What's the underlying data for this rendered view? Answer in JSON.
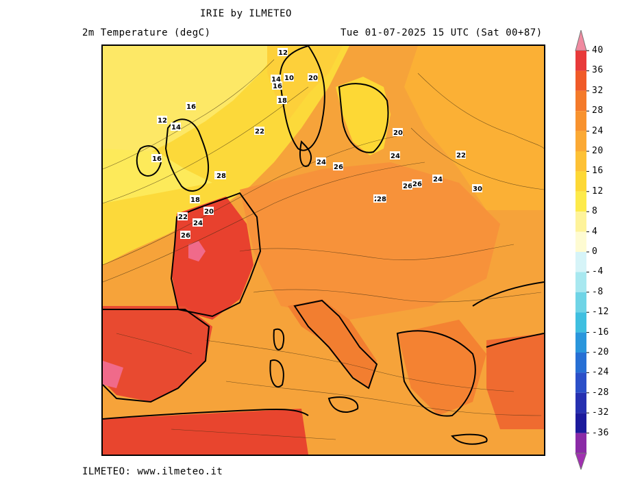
{
  "header": {
    "title": "IRIE by ILMETEO",
    "variable": "2m Temperature (degC)",
    "valid_time": "Tue 01-07-2025 15 UTC (Sat 00+87)"
  },
  "footer": {
    "credit": "ILMETEO: www.ilmeteo.it"
  },
  "colorbar": {
    "levels": [
      "40",
      "36",
      "32",
      "28",
      "24",
      "20",
      "16",
      "12",
      "8",
      "4",
      "0",
      "-4",
      "-8",
      "-12",
      "-16",
      "-20",
      "-24",
      "-28",
      "-32",
      "-36"
    ],
    "colors": [
      "#e83a3a",
      "#f05a28",
      "#f47a2a",
      "#f8922e",
      "#fba934",
      "#fdc135",
      "#fdd835",
      "#fdea4a",
      "#fef39a",
      "#fefbd2",
      "#d6f4f8",
      "#a8e8f0",
      "#6fd4e6",
      "#3fbfe0",
      "#2a96dc",
      "#276fd4",
      "#2b4fc8",
      "#2630b0",
      "#1c1a9c",
      "#8a2aa6"
    ],
    "top_arrow_color": "#f08aa0",
    "bottom_arrow_color": "#a030b0"
  },
  "map": {
    "sea_color_warm": "#f6a33a",
    "labels": [
      {
        "t": "12"
      },
      {
        "t": "14"
      },
      {
        "t": "10"
      },
      {
        "t": "16"
      },
      {
        "t": "18"
      },
      {
        "t": "20"
      },
      {
        "t": "22"
      },
      {
        "t": "24"
      },
      {
        "t": "26"
      },
      {
        "t": "28"
      },
      {
        "t": "16"
      },
      {
        "t": "12"
      },
      {
        "t": "14"
      },
      {
        "t": "16"
      },
      {
        "t": "18"
      },
      {
        "t": "20"
      },
      {
        "t": "22"
      },
      {
        "t": "24"
      },
      {
        "t": "26"
      },
      {
        "t": "28"
      },
      {
        "t": "24"
      },
      {
        "t": "20"
      },
      {
        "t": "26"
      },
      {
        "t": "28"
      },
      {
        "t": "22"
      },
      {
        "t": "24"
      },
      {
        "t": "26"
      },
      {
        "t": "28"
      },
      {
        "t": "30"
      }
    ]
  }
}
